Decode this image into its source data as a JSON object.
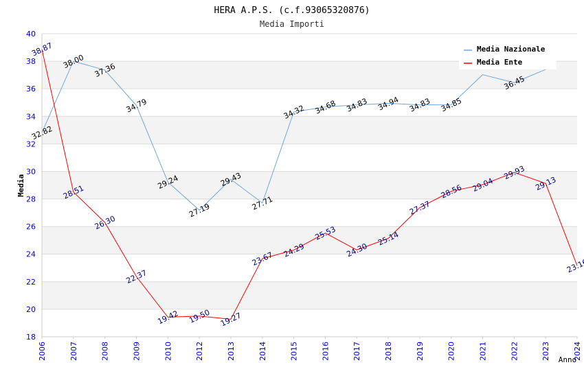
{
  "chart_data": {
    "type": "line",
    "title": "HERA A.P.S. (c.f.93065320876)",
    "subtitle": "Media Importi",
    "xlabel": "Anno",
    "ylabel": "Media",
    "ylim": [
      18,
      40
    ],
    "yticks": [
      "18",
      "20",
      "22",
      "24",
      "26",
      "28",
      "30",
      "32",
      "34",
      "36",
      "38",
      "40"
    ],
    "categories": [
      "2006",
      "2007",
      "2008",
      "2009",
      "2010",
      "2012",
      "2013",
      "2014",
      "2015",
      "2016",
      "2017",
      "2018",
      "2019",
      "2020",
      "2021",
      "2022",
      "2023",
      "2024"
    ],
    "grid": true,
    "legend_position": "top-right",
    "series": [
      {
        "name": "Media Nazionale",
        "color": "#6fa8dc",
        "label_color": "#000000",
        "values": [
          32.82,
          38.0,
          37.36,
          34.79,
          29.24,
          27.19,
          29.43,
          27.71,
          34.32,
          34.68,
          34.83,
          34.94,
          34.83,
          34.85,
          37.02,
          36.45,
          37.4,
          null
        ],
        "labels": [
          "32.82",
          "38.00",
          "37.36",
          "34.79",
          "29.24",
          "27.19",
          "29.43",
          "27.71",
          "34.32",
          "34.68",
          "34.83",
          "34.94",
          "34.83",
          "34.85",
          "",
          "36.45",
          "",
          ""
        ]
      },
      {
        "name": "Media Ente",
        "color": "#ff0000",
        "label_color": "#000080",
        "values": [
          38.87,
          28.51,
          26.3,
          22.37,
          19.42,
          19.5,
          19.27,
          23.67,
          24.29,
          25.53,
          24.3,
          25.14,
          27.37,
          28.56,
          29.04,
          29.93,
          29.13,
          23.16
        ],
        "labels": [
          "38.87",
          "28.51",
          "26.30",
          "22.37",
          "19.42",
          "19.50",
          "19.27",
          "23.67",
          "24.29",
          "25.53",
          "24.30",
          "25.14",
          "27.37",
          "28.56",
          "29.04",
          "29.93",
          "29.13",
          "23.16"
        ]
      }
    ]
  }
}
